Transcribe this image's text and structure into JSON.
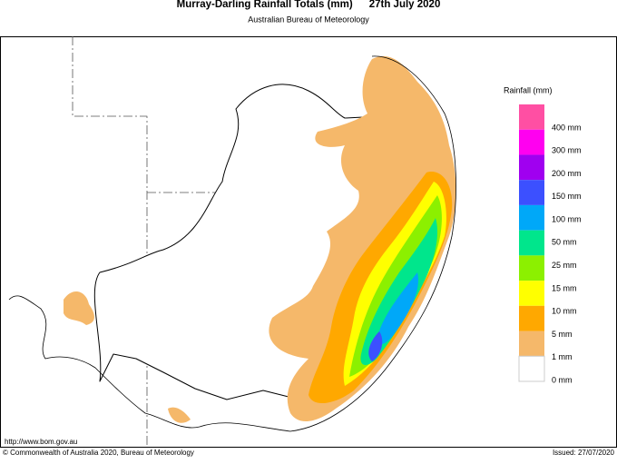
{
  "header": {
    "title": "Murray-Darling Rainfall Totals (mm)",
    "date": "27th July 2020",
    "subtitle": "Australian Bureau of Meteorology"
  },
  "legend": {
    "title": "Rainfall (mm)",
    "colors": [
      "#ff4fa3",
      "#ff00f0",
      "#a000f0",
      "#3c50ff",
      "#00a8f8",
      "#00e68c",
      "#8cf000",
      "#ffff00",
      "#ffa800",
      "#f5b86a",
      "#ffffff"
    ],
    "labels": [
      "400 mm",
      "300 mm",
      "200 mm",
      "150 mm",
      "100 mm",
      "50 mm",
      "25 mm",
      "15 mm",
      "10 mm",
      "5 mm",
      "1 mm",
      "0 mm"
    ]
  },
  "footer": {
    "url": "http://www.bom.gov.au",
    "copyright": "© Commonwealth of Australia 2020, Bureau of Meteorology",
    "issued": "Issued: 27/07/2020"
  }
}
